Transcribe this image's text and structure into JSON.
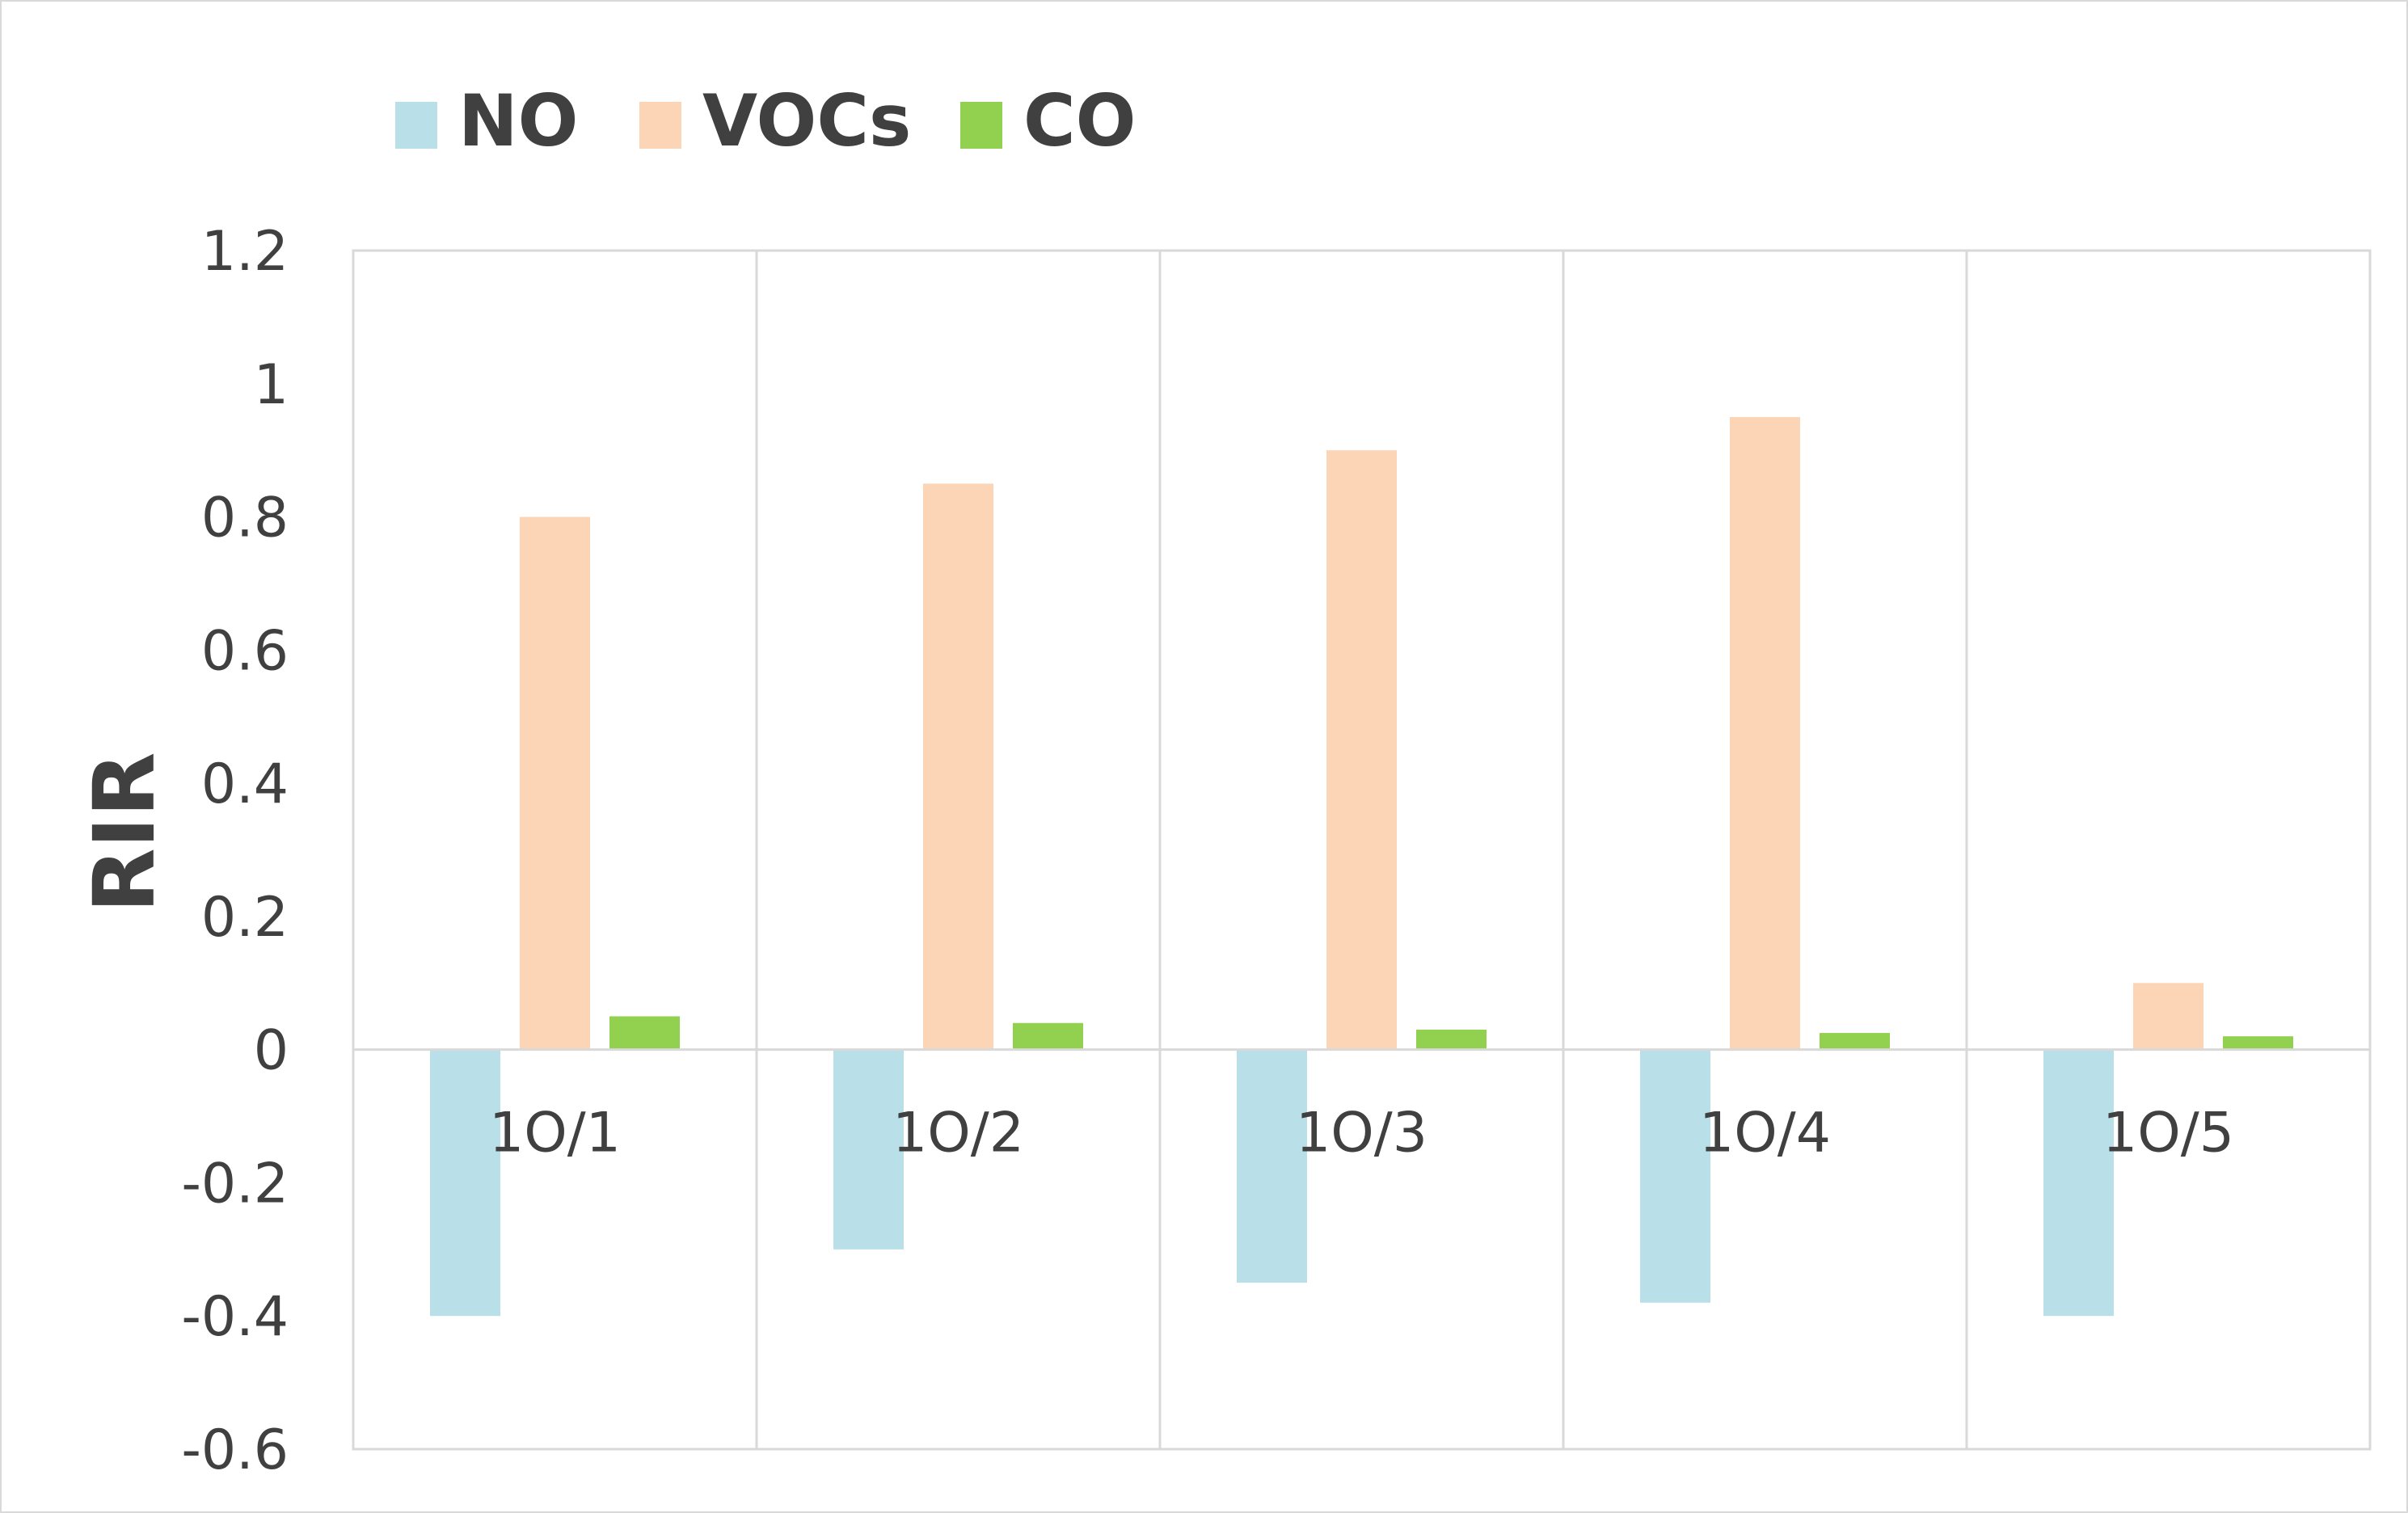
{
  "chart_data": {
    "type": "bar",
    "title": "",
    "xlabel": "",
    "ylabel": "RIR",
    "categories": [
      "1O/1",
      "1O/2",
      "1O/3",
      "1O/4",
      "1O/5"
    ],
    "series": [
      {
        "name": "NO",
        "color": "#b9dfe8",
        "values": [
          -0.4,
          -0.3,
          -0.35,
          -0.38,
          -0.4
        ]
      },
      {
        "name": "VOCs",
        "color": "#fbd5b5",
        "values": [
          0.8,
          0.85,
          0.9,
          0.95,
          0.1
        ]
      },
      {
        "name": "CO",
        "color": "#92d050",
        "values": [
          0.05,
          0.04,
          0.03,
          0.025,
          0.02
        ]
      }
    ],
    "ylim": [
      -0.6,
      1.2
    ],
    "yticks": [
      "1.2",
      "1",
      "0.8",
      "0.6",
      "0.4",
      "0.2",
      "0",
      "-0.2",
      "-0.4",
      "-0.6"
    ],
    "grid": true,
    "legend": "top-left"
  }
}
